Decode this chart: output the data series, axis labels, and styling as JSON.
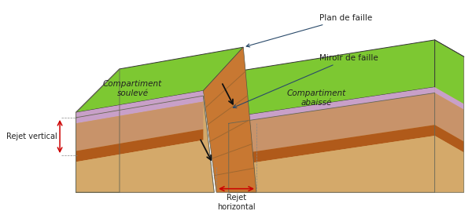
{
  "title": "",
  "labels": {
    "plan_de_faille": "Plan de faille",
    "miroir_de_faille": "Miroir de faille",
    "compartiment_souleve": "Compartiment\nsoulevé",
    "compartiment_abaisse": "Compartiment\nabaissé",
    "rejet_vertical": "Rejet vertical",
    "rejet_horizontal": "Rejet\nhorizontal"
  },
  "colors": {
    "bg_color": "#ffffff",
    "green_top": "#7dc832",
    "purple_layer": "#c8a0c8",
    "sand_light": "#d4a96a",
    "sand_medium": "#c8936a",
    "dark_stripe": "#b05a1a",
    "fault_face": "#c87832",
    "outline": "#555555",
    "arrow_color": "#cc0000",
    "annotation_line": "#2a4a6a",
    "text_color": "#222222"
  }
}
